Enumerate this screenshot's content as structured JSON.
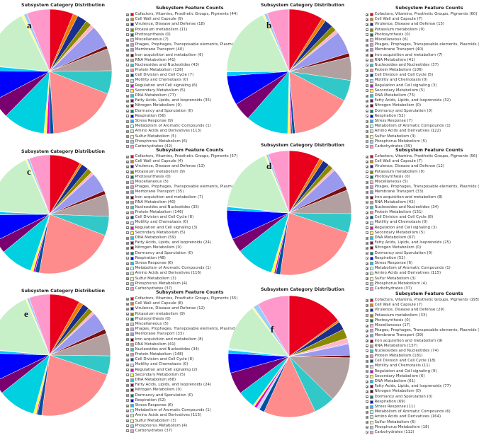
{
  "categories": [
    "Cofactors, Vitamins, Prosthetic Groups, Pigments",
    "Cell Wall and Capsule",
    "Virulence, Disease and Defense",
    "Potassium metabolism",
    "Photosynthesis",
    "Miscellaneous",
    "Phages, Prophages, Transposable elements, Plasmids",
    "Membrane Transport",
    "Iron acquisition and metabolism",
    "RNA Metabolism",
    "Nucleosides and Nucleotides",
    "Protein Metabolism",
    "Cell Division and Cell Cycle",
    "Motility and Chemotaxis",
    "Regulation and Cell signaling",
    "Secondary Metabolism",
    "DNA Metabolism",
    "Fatty Acids, Lipids, and Isoprenoids",
    "Nitrogen Metabolism",
    "Dormancy and Sporulation",
    "Respiration",
    "Stress Response",
    "Metabolism of Aromatic Compounds",
    "Amino Acids and Derivatives",
    "Sulfur Metabolism",
    "Phosphorus Metabolism",
    "Carbohydrates"
  ],
  "colors": [
    "#e8001c",
    "#ef7b00",
    "#1a2e8c",
    "#8a8a00",
    "#007a5a",
    "#ffb6c8",
    "#cc99ff",
    "#9999ee",
    "#7a0e10",
    "#b2a0a0",
    "#33c8c8",
    "#ff8c8c",
    "#004fa0",
    "#cfd0ff",
    "#e000c8",
    "#ffff40",
    "#00d0e0",
    "#7a0070",
    "#7a0000",
    "#007a7a",
    "#0000ff",
    "#00c8ff",
    "#c8ffff",
    "#c8f0c8",
    "#ffff99",
    "#99ccff",
    "#ff99cc"
  ],
  "pie_title": "Subsystem Category Distribution",
  "legend_title": "Subsystem Feature Counts",
  "chart_data": [
    {
      "type": "pie",
      "panel": "a",
      "title": "Subsystem Category Distribution",
      "legend_title": "Subsystem Feature Counts",
      "values": [
        44,
        9,
        18,
        11,
        0,
        7,
        0,
        40,
        6,
        41,
        43,
        128,
        7,
        0,
        6,
        5,
        77,
        35,
        0,
        0,
        56,
        9,
        1,
        113,
        5,
        6,
        42
      ]
    },
    {
      "type": "pie",
      "panel": "b",
      "title": "Subsystem Category Distribution",
      "legend_title": "Subsystem Feature Counts",
      "values": [
        60,
        7,
        15,
        9,
        0,
        6,
        0,
        40,
        7,
        41,
        37,
        106,
        5,
        0,
        3,
        5,
        75,
        32,
        0,
        0,
        52,
        7,
        1,
        122,
        3,
        5,
        39
      ]
    },
    {
      "type": "pie",
      "panel": "c",
      "title": "Subsystem Category Distribution",
      "legend_title": "Subsystem Feature Counts",
      "values": [
        57,
        4,
        13,
        9,
        0,
        5,
        0,
        35,
        7,
        40,
        35,
        146,
        8,
        0,
        3,
        5,
        59,
        24,
        0,
        0,
        48,
        6,
        1,
        116,
        3,
        4,
        37
      ]
    },
    {
      "type": "pie",
      "panel": "d",
      "title": "Subsystem Category Distribution",
      "legend_title": "Subsystem Feature Counts",
      "values": [
        56,
        7,
        12,
        9,
        0,
        5,
        0,
        33,
        8,
        42,
        34,
        151,
        8,
        0,
        3,
        5,
        67,
        25,
        0,
        0,
        52,
        6,
        1,
        115,
        3,
        4,
        37
      ]
    },
    {
      "type": "pie",
      "panel": "e",
      "title": "Subsystem Category Distribution",
      "legend_title": "Subsystem Feature Counts",
      "values": [
        55,
        8,
        12,
        9,
        0,
        5,
        0,
        33,
        8,
        41,
        34,
        148,
        8,
        0,
        2,
        5,
        68,
        24,
        0,
        0,
        52,
        6,
        1,
        115,
        3,
        4,
        37
      ]
    },
    {
      "type": "pie",
      "panel": "f",
      "title": "Subsystem Category Distribution",
      "legend_title": "Subsystem Feature Counts",
      "values": [
        195,
        7,
        29,
        33,
        0,
        17,
        4,
        39,
        9,
        157,
        74,
        181,
        18,
        11,
        9,
        6,
        61,
        77,
        0,
        0,
        69,
        11,
        6,
        164,
        6,
        18,
        112
      ]
    }
  ]
}
